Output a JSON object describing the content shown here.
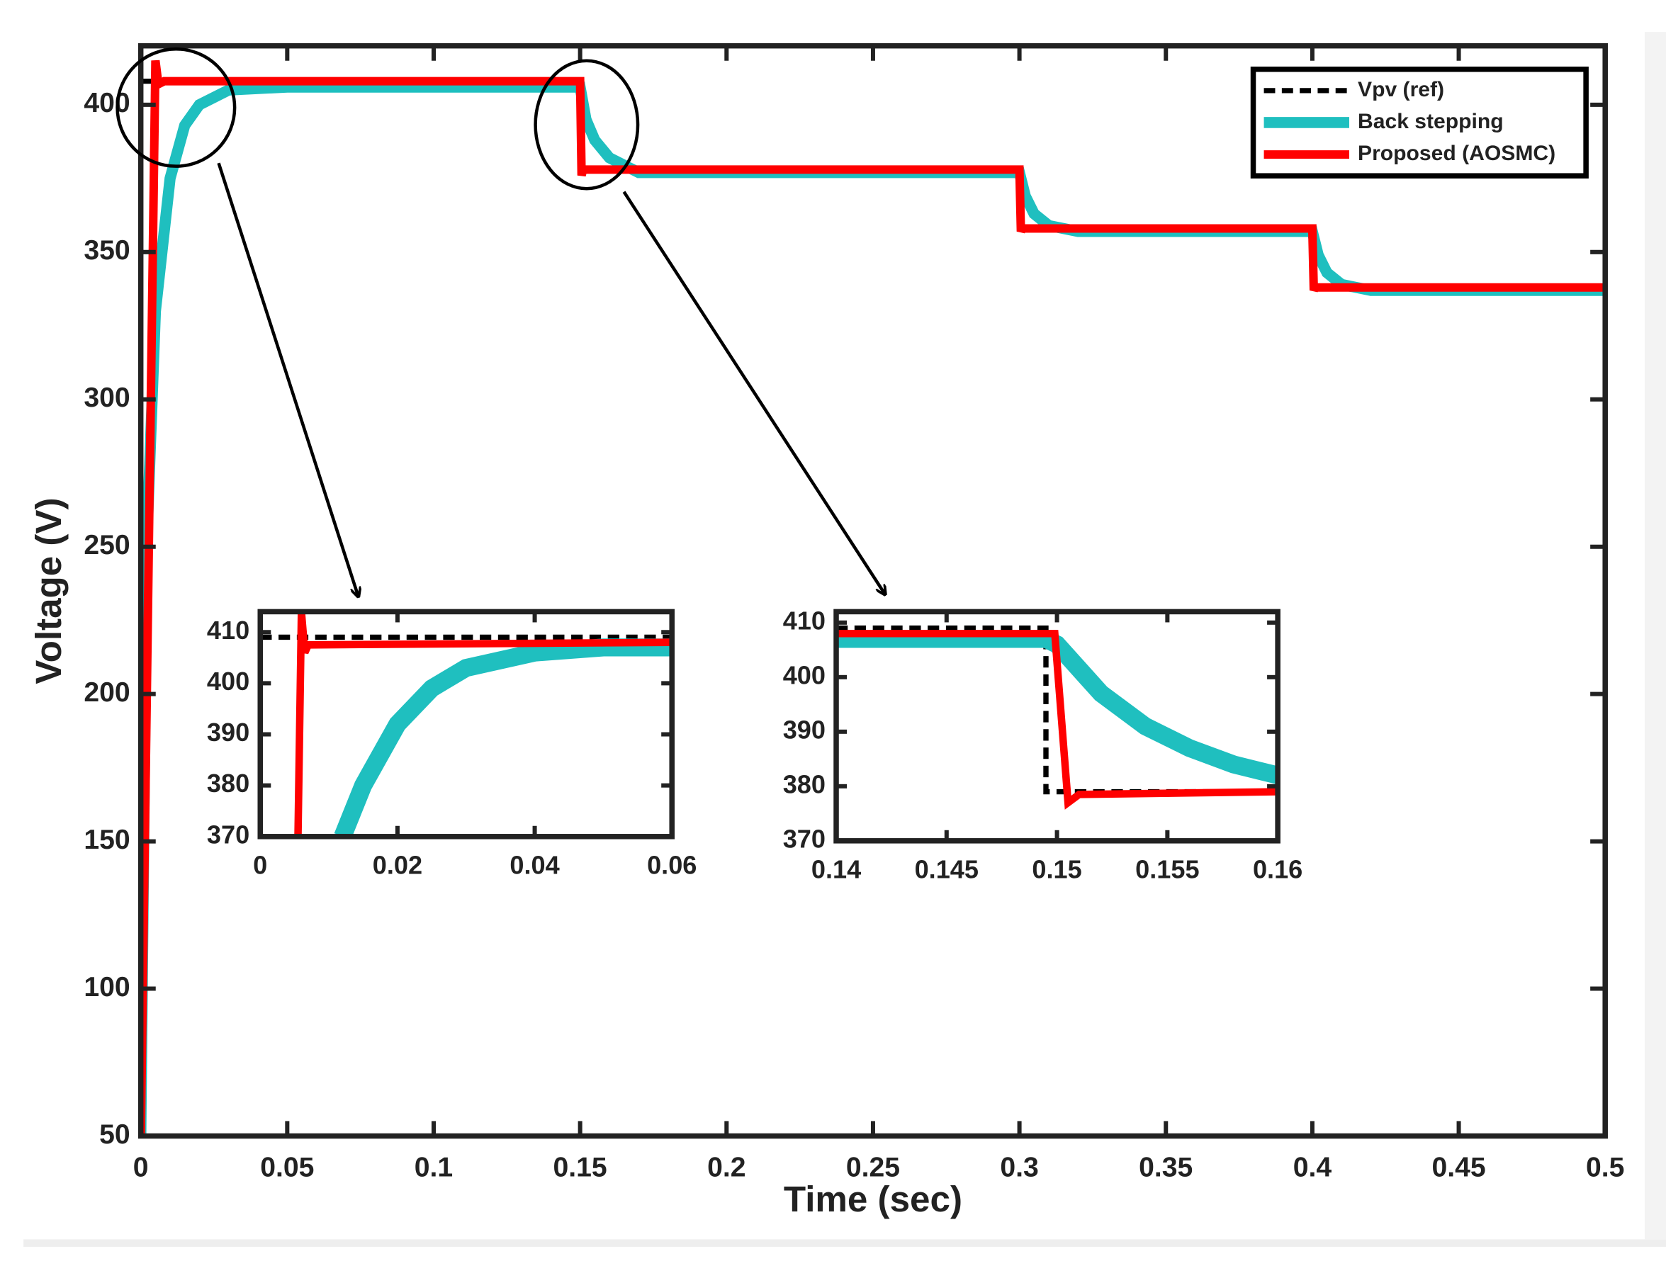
{
  "chart_data": [
    {
      "type": "line",
      "xlabel": "Time (sec)",
      "ylabel": "Voltage (V)",
      "xlim": [
        0,
        0.5
      ],
      "ylim": [
        50,
        420
      ],
      "xticks": [
        0,
        0.05,
        0.1,
        0.15,
        0.2,
        0.25,
        0.3,
        0.35,
        0.4,
        0.45,
        0.5
      ],
      "yticks": [
        50,
        100,
        150,
        200,
        250,
        300,
        350,
        400
      ],
      "legend": "top right",
      "series": [
        {
          "name": "Vpv (ref)",
          "color": "#000000",
          "linestyle": "dashed",
          "x": [
            0,
            0.15,
            0.15,
            0.3,
            0.3,
            0.4,
            0.4,
            0.5
          ],
          "values": [
            408,
            408,
            378,
            378,
            358,
            358,
            338,
            338
          ]
        },
        {
          "name": "Back stepping",
          "color": "#1fbfbf",
          "linestyle": "solid",
          "x": [
            0,
            0.002,
            0.005,
            0.01,
            0.015,
            0.02,
            0.03,
            0.05,
            0.15,
            0.152,
            0.155,
            0.16,
            0.17,
            0.3,
            0.302,
            0.305,
            0.31,
            0.32,
            0.4,
            0.402,
            0.405,
            0.41,
            0.42,
            0.5
          ],
          "values": [
            50,
            250,
            330,
            375,
            393,
            400,
            405,
            406,
            406,
            395,
            388,
            382,
            377,
            377,
            369,
            363,
            359,
            357,
            357,
            349,
            343,
            339,
            337,
            337
          ]
        },
        {
          "name": "Proposed (AOSMC)",
          "color": "#ff0000",
          "linestyle": "solid",
          "x": [
            0,
            0.005,
            0.006,
            0.008,
            0.15,
            0.1505,
            0.151,
            0.3,
            0.3005,
            0.301,
            0.4,
            0.4005,
            0.401,
            0.5
          ],
          "values": [
            50,
            415,
            407,
            408,
            408,
            376,
            378,
            378,
            357,
            358,
            358,
            337,
            338,
            338
          ]
        }
      ]
    },
    {
      "type": "line",
      "xlim": [
        0,
        0.06
      ],
      "ylim": [
        370,
        414
      ],
      "xticks": [
        0,
        0.02,
        0.04,
        0.06
      ],
      "yticks": [
        370,
        380,
        390,
        400,
        410
      ],
      "series": [
        {
          "color": "#000000",
          "linestyle": "dashed",
          "x": [
            0,
            0.06
          ],
          "values": [
            409,
            409
          ]
        },
        {
          "color": "#1fbfbf",
          "linestyle": "solid",
          "x": [
            0.012,
            0.015,
            0.02,
            0.025,
            0.03,
            0.04,
            0.05,
            0.06
          ],
          "values": [
            370,
            380,
            392,
            399,
            403,
            406,
            407,
            407
          ]
        },
        {
          "color": "#ff0000",
          "linestyle": "solid",
          "x": [
            0.0055,
            0.006,
            0.0065,
            0.007,
            0.06
          ],
          "values": [
            370,
            414,
            406,
            407.5,
            408
          ]
        }
      ]
    },
    {
      "type": "line",
      "xlim": [
        0.14,
        0.16
      ],
      "ylim": [
        370,
        412
      ],
      "xticks": [
        0.14,
        0.145,
        0.15,
        0.155,
        0.16
      ],
      "yticks": [
        370,
        380,
        390,
        400,
        410
      ],
      "series": [
        {
          "color": "#000000",
          "linestyle": "dashed",
          "x": [
            0.14,
            0.1495,
            0.1495,
            0.16
          ],
          "values": [
            409,
            409,
            379,
            379
          ]
        },
        {
          "color": "#1fbfbf",
          "linestyle": "solid",
          "x": [
            0.14,
            0.1495,
            0.15,
            0.152,
            0.154,
            0.156,
            0.158,
            0.16
          ],
          "values": [
            407,
            407,
            406,
            397,
            391,
            387,
            384,
            382
          ]
        },
        {
          "color": "#ff0000",
          "linestyle": "solid",
          "x": [
            0.14,
            0.1499,
            0.1505,
            0.151,
            0.16
          ],
          "values": [
            408,
            408,
            377,
            378.5,
            379
          ]
        }
      ]
    }
  ]
}
